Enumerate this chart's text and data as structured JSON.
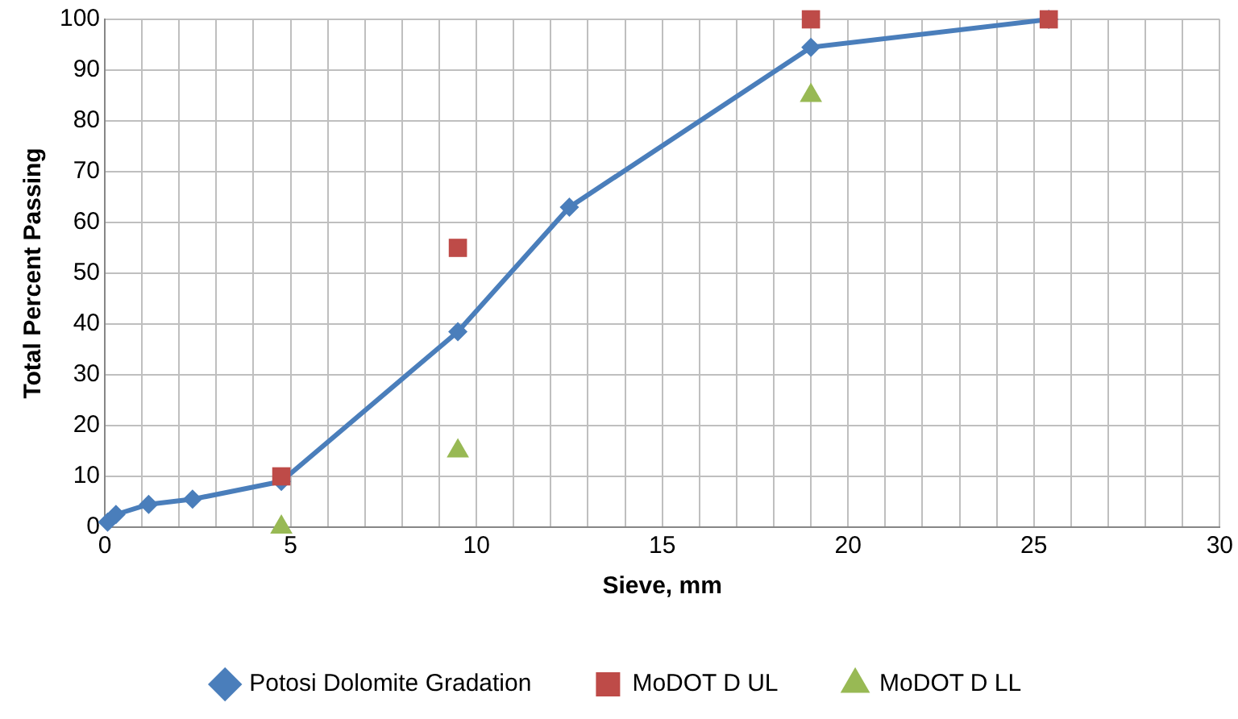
{
  "chart_data": {
    "type": "line",
    "xlabel": "Sieve, mm",
    "ylabel": "Total Percent Passing",
    "xlim": [
      0,
      30
    ],
    "ylim": [
      0,
      100
    ],
    "xticks": [
      0,
      {
        "value": 1,
        "label": null
      },
      {
        "value": 2,
        "label": null
      },
      {
        "value": 3,
        "label": null
      },
      {
        "value": 4,
        "label": null
      },
      5,
      {
        "value": 6,
        "label": null
      },
      {
        "value": 7,
        "label": null
      },
      {
        "value": 8,
        "label": null
      },
      {
        "value": 9,
        "label": null
      },
      10,
      {
        "value": 11,
        "label": null
      },
      {
        "value": 12,
        "label": null
      },
      {
        "value": 13,
        "label": null
      },
      {
        "value": 14,
        "label": null
      },
      15,
      {
        "value": 16,
        "label": null
      },
      {
        "value": 17,
        "label": null
      },
      {
        "value": 18,
        "label": null
      },
      {
        "value": 19,
        "label": null
      },
      20,
      {
        "value": 21,
        "label": null
      },
      {
        "value": 22,
        "label": null
      },
      {
        "value": 23,
        "label": null
      },
      {
        "value": 24,
        "label": null
      },
      25,
      {
        "value": 26,
        "label": null
      },
      {
        "value": 27,
        "label": null
      },
      {
        "value": 28,
        "label": null
      },
      {
        "value": 29,
        "label": null
      },
      30
    ],
    "yticks": [
      0,
      10,
      20,
      30,
      40,
      50,
      60,
      70,
      80,
      90,
      100
    ],
    "grid": true,
    "legend": "bottom",
    "series": [
      {
        "name": "Potosi Dolomite Gradation",
        "marker": "diamond",
        "color": "#4a7ebb",
        "x": [
          0.075,
          0.3,
          1.18,
          2.36,
          4.75,
          9.5,
          12.5,
          19,
          25.4
        ],
        "values": [
          1,
          2.5,
          4.5,
          5.5,
          9,
          38.5,
          63,
          94.5,
          100
        ]
      },
      {
        "name": "MoDOT D UL",
        "type": "scatter",
        "marker": "square",
        "color": "#be4b48",
        "x": [
          4.75,
          9.5,
          19,
          25.4
        ],
        "values": [
          10,
          55,
          100,
          100
        ]
      },
      {
        "name": "MoDOT D LL",
        "type": "scatter",
        "marker": "triangle",
        "color": "#98b954",
        "x": [
          4.75,
          9.5,
          19
        ],
        "values": [
          0,
          15,
          85
        ]
      }
    ]
  }
}
